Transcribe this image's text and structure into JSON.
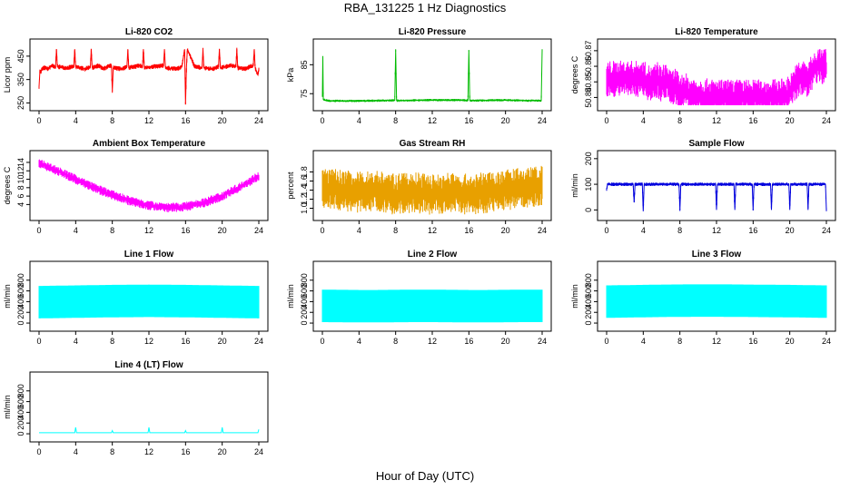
{
  "title": "RBA_131225  1 Hz Diagnostics",
  "x_axis_label": "Hour of Day (UTC)",
  "chart_data": [
    {
      "type": "line",
      "title": "Li-820 CO2",
      "ylabel": "Licor ppm",
      "color": "#ff0000",
      "xlim": [
        0,
        24
      ],
      "ylim": [
        240,
        500
      ],
      "x_ticks": [
        "0",
        "4",
        "8",
        "12",
        "16",
        "20",
        "24"
      ],
      "y_ticks": [
        "250",
        "350",
        "450"
      ],
      "series": [
        {
          "x": [
            0.0,
            0.1,
            0.2,
            0.3,
            0.6,
            1.0,
            1.4,
            1.8,
            1.9,
            2.0,
            3.0,
            3.8,
            3.9,
            4.0,
            5.0,
            5.6,
            5.7,
            5.8,
            6.5,
            7.0,
            7.5,
            7.9,
            8.0,
            8.1,
            9.0,
            9.6,
            9.7,
            9.8,
            11.0,
            11.3,
            11.4,
            11.5,
            12.5,
            13.6,
            13.7,
            13.8,
            15.0,
            15.6,
            15.9,
            16.0,
            16.1,
            16.2,
            17.0,
            17.8,
            17.9,
            18.0,
            19.0,
            19.6,
            19.7,
            19.8,
            21.0,
            21.5,
            21.6,
            21.7,
            22.5,
            23.0,
            23.4,
            23.5,
            23.6,
            23.9,
            24.0
          ],
          "y": [
            320,
            390,
            380,
            395,
            400,
            395,
            410,
            400,
            480,
            405,
            400,
            405,
            480,
            405,
            395,
            405,
            480,
            400,
            410,
            395,
            405,
            410,
            300,
            400,
            395,
            405,
            480,
            400,
            410,
            405,
            480,
            400,
            405,
            410,
            480,
            400,
            395,
            405,
            480,
            245,
            400,
            480,
            405,
            400,
            480,
            400,
            395,
            405,
            480,
            400,
            410,
            405,
            480,
            400,
            395,
            405,
            410,
            480,
            400,
            370,
            395
          ]
        }
      ]
    },
    {
      "type": "line",
      "title": "Li-820 Pressure",
      "ylabel": "kPa",
      "color": "#00bb00",
      "xlim": [
        0,
        24
      ],
      "ylim": [
        71,
        92
      ],
      "x_ticks": [
        "0",
        "4",
        "8",
        "12",
        "16",
        "20",
        "24"
      ],
      "y_ticks": [
        "75",
        "85"
      ],
      "series": [
        {
          "x": [
            0.0,
            0.05,
            0.1,
            0.3,
            0.6,
            1,
            2,
            4,
            6,
            7.9,
            8.0,
            8.1,
            10,
            12,
            14,
            15.9,
            16.0,
            16.1,
            18,
            20,
            22,
            23.9,
            24.0
          ],
          "y": [
            74,
            88,
            73,
            72.8,
            72.6,
            72.5,
            72.5,
            72.5,
            72.6,
            72.7,
            90,
            72.6,
            72.7,
            72.8,
            72.8,
            72.7,
            90,
            72.6,
            72.7,
            72.8,
            72.6,
            72.6,
            90
          ]
        }
      ]
    },
    {
      "type": "line",
      "title": "Li-820 Temperature",
      "ylabel": "degrees C",
      "color": "#ff00ff",
      "xlim": [
        0,
        24
      ],
      "ylim": [
        50.835,
        50.874
      ],
      "x_ticks": [
        "0",
        "4",
        "8",
        "12",
        "16",
        "20",
        "24"
      ],
      "y_ticks": [
        "50.84",
        "50.85",
        "50.86",
        "50.87"
      ],
      "series": [
        {
          "x": [
            0.0,
            0.5,
            1.0,
            2.0,
            3.0,
            4.0,
            5.0,
            5.5,
            6.0,
            6.5,
            7.0,
            7.5,
            8.0,
            8.5,
            9.0,
            10.0,
            12.0,
            14.0,
            16.0,
            18.0,
            19.5,
            20.0,
            20.5,
            21.0,
            22.0,
            23.0,
            24.0
          ],
          "y": [
            50.852,
            50.852,
            50.852,
            50.852,
            50.852,
            50.852,
            50.848,
            50.852,
            50.848,
            50.852,
            50.845,
            50.848,
            50.842,
            50.845,
            50.842,
            50.841,
            50.84,
            50.84,
            50.84,
            50.84,
            50.841,
            50.843,
            50.848,
            50.852,
            50.852,
            50.86,
            50.86
          ]
        }
      ]
    },
    {
      "type": "line",
      "title": "Ambient Box Temperature",
      "ylabel": "degrees C",
      "color": "#ff00ff",
      "xlim": [
        0,
        24
      ],
      "ylim": [
        1.5,
        15.5
      ],
      "x_ticks": [
        "0",
        "4",
        "8",
        "12",
        "16",
        "20",
        "24"
      ],
      "y_ticks": [
        "4",
        "6",
        "8",
        "10",
        "12",
        "14"
      ],
      "series": [
        {
          "x": [
            0,
            2,
            4,
            6,
            8,
            10,
            12,
            14,
            15,
            16,
            18,
            20,
            22,
            24
          ],
          "y": [
            13.8,
            12.0,
            10.0,
            8.0,
            6.3,
            4.8,
            3.8,
            3.3,
            3.3,
            3.5,
            4.4,
            6.0,
            8.2,
            10.8
          ]
        }
      ]
    },
    {
      "type": "line",
      "title": "Gas Stream RH",
      "ylabel": "percent",
      "color": "#e8a000",
      "xlim": [
        0,
        24
      ],
      "ylim": [
        0.85,
        2.15
      ],
      "x_ticks": [
        "0",
        "4",
        "8",
        "12",
        "16",
        "20",
        "24"
      ],
      "y_ticks": [
        "1.0",
        "1.2",
        "1.4",
        "1.6",
        "1.8"
      ],
      "series": [
        {
          "x": [
            0,
            2,
            4,
            6,
            8,
            10,
            12,
            14,
            16,
            18,
            20,
            22,
            24
          ],
          "y": [
            1.45,
            1.4,
            1.35,
            1.4,
            1.3,
            1.35,
            1.3,
            1.35,
            1.3,
            1.35,
            1.4,
            1.45,
            1.5
          ]
        }
      ]
    },
    {
      "type": "line",
      "title": "Sample Flow",
      "ylabel": "ml/min",
      "color": "#0000dd",
      "xlim": [
        0,
        24
      ],
      "ylim": [
        -20,
        210
      ],
      "x_ticks": [
        "0",
        "4",
        "8",
        "12",
        "16",
        "20",
        "24"
      ],
      "y_ticks": [
        "0",
        "100",
        "200"
      ],
      "series": [
        {
          "x": [
            0,
            0.1,
            1,
            2,
            2.9,
            3.0,
            3.1,
            3.9,
            4.0,
            4.1,
            5,
            6,
            7,
            7.9,
            8.0,
            8.1,
            9,
            10,
            11,
            11.9,
            12.0,
            12.1,
            13,
            13.9,
            14.0,
            14.1,
            15,
            15.9,
            16.0,
            16.1,
            17,
            17.9,
            18.0,
            18.1,
            19,
            19.9,
            20.0,
            20.1,
            21,
            21.9,
            22.0,
            22.1,
            23,
            23.9,
            24.0
          ],
          "y": [
            80,
            100,
            100,
            100,
            100,
            30,
            100,
            100,
            -5,
            100,
            100,
            100,
            100,
            100,
            0,
            100,
            100,
            100,
            100,
            100,
            0,
            100,
            100,
            100,
            0,
            100,
            100,
            100,
            0,
            100,
            100,
            100,
            0,
            100,
            100,
            100,
            0,
            100,
            100,
            100,
            0,
            100,
            100,
            100,
            0
          ]
        }
      ]
    },
    {
      "type": "line",
      "title": "Line 1 Flow",
      "ylabel": "ml/min",
      "color": "#00ffff",
      "xlim": [
        0,
        24
      ],
      "ylim": [
        -50,
        1050
      ],
      "x_ticks": [
        "0",
        "4",
        "8",
        "12",
        "16",
        "20",
        "24"
      ],
      "y_ticks": [
        "0",
        "200",
        "400",
        "600",
        "800"
      ],
      "series": [
        {
          "x": [
            0,
            2,
            4,
            6,
            8,
            10,
            12,
            14,
            16,
            18,
            20,
            22,
            24
          ],
          "y": [
            390,
            395,
            400,
            405,
            410,
            412,
            415,
            412,
            410,
            405,
            400,
            395,
            390
          ]
        }
      ]
    },
    {
      "type": "line",
      "title": "Line 2 Flow",
      "ylabel": "ml/min",
      "color": "#00ffff",
      "xlim": [
        0,
        24
      ],
      "ylim": [
        -50,
        1050
      ],
      "x_ticks": [
        "0",
        "4",
        "8",
        "12",
        "16",
        "20",
        "24"
      ],
      "y_ticks": [
        "0",
        "200",
        "400",
        "600",
        "800"
      ],
      "series": [
        {
          "x": [
            0,
            2,
            4,
            6,
            8,
            10,
            12,
            14,
            16,
            18,
            20,
            22,
            24
          ],
          "y": [
            320,
            318,
            315,
            315,
            318,
            320,
            320,
            318,
            315,
            315,
            318,
            320,
            320
          ]
        }
      ]
    },
    {
      "type": "line",
      "title": "Line 3 Flow",
      "ylabel": "ml/min",
      "color": "#00ffff",
      "xlim": [
        0,
        24
      ],
      "ylim": [
        -50,
        1050
      ],
      "x_ticks": [
        "0",
        "4",
        "8",
        "12",
        "16",
        "20",
        "24"
      ],
      "y_ticks": [
        "0",
        "200",
        "400",
        "600",
        "800"
      ],
      "series": [
        {
          "x": [
            0,
            2,
            4,
            6,
            8,
            10,
            12,
            14,
            16,
            18,
            20,
            22,
            24
          ],
          "y": [
            400,
            405,
            410,
            415,
            418,
            420,
            420,
            418,
            415,
            412,
            410,
            405,
            400
          ]
        }
      ]
    },
    {
      "type": "line",
      "title": "Line 4 (LT) Flow",
      "ylabel": "ml/min",
      "color": "#00ffff",
      "xlim": [
        0,
        24
      ],
      "ylim": [
        -50,
        1050
      ],
      "x_ticks": [
        "0",
        "4",
        "8",
        "12",
        "16",
        "20",
        "24"
      ],
      "y_ticks": [
        "0",
        "200",
        "400",
        "600",
        "800"
      ],
      "series": [
        {
          "x": [
            0,
            3.9,
            4.0,
            4.1,
            7.9,
            8.0,
            8.1,
            11.9,
            12.0,
            12.1,
            15.9,
            16.0,
            16.1,
            19.9,
            20.0,
            20.1,
            23.9,
            24.0
          ],
          "y": [
            20,
            20,
            120,
            20,
            20,
            60,
            20,
            20,
            120,
            20,
            20,
            60,
            20,
            20,
            120,
            20,
            20,
            80
          ]
        }
      ]
    }
  ]
}
